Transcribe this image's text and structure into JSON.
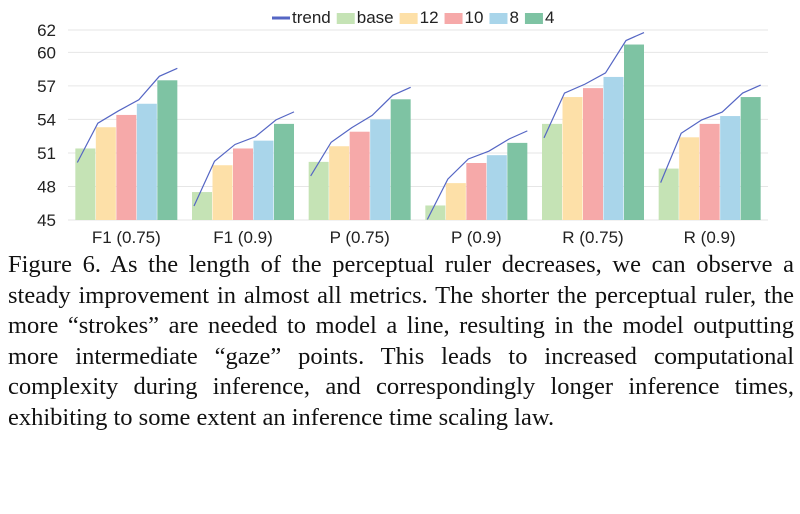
{
  "chart_data": {
    "type": "bar",
    "categories": [
      "F1 (0.75)",
      "F1 (0.9)",
      "P (0.75)",
      "P (0.9)",
      "R (0.75)",
      "R (0.9)"
    ],
    "series": [
      {
        "name": "base",
        "color": "#c5e3b5",
        "values": [
          51.4,
          47.5,
          50.2,
          46.3,
          53.6,
          49.6
        ]
      },
      {
        "name": "12",
        "color": "#fde0a8",
        "values": [
          53.3,
          49.9,
          51.6,
          48.3,
          56.0,
          52.4
        ]
      },
      {
        "name": "10",
        "color": "#f6a9a9",
        "values": [
          54.4,
          51.4,
          52.9,
          50.1,
          56.8,
          53.6
        ]
      },
      {
        "name": "8",
        "color": "#a9d5ea",
        "values": [
          55.4,
          52.1,
          54.0,
          50.8,
          57.8,
          54.3
        ]
      },
      {
        "name": "4",
        "color": "#7ec3a3",
        "values": [
          57.5,
          53.6,
          55.8,
          51.9,
          60.7,
          56.0
        ]
      }
    ],
    "trend": {
      "name": "trend",
      "color": "#5566c4"
    },
    "yticks": [
      45,
      48,
      51,
      54,
      57,
      60,
      62
    ],
    "ylim": [
      45,
      62
    ],
    "grid": true,
    "legend_position": "top"
  },
  "caption": "Figure 6. As the length of the perceptual ruler decreases, we can observe a steady improvement in almost all metrics. The shorter the perceptual ruler, the more “strokes” are needed to model a line, resulting in the model outputting more intermediate “gaze” points. This leads to increased computational complexity during inference, and correspondingly longer inference times, exhibiting to some extent an inference time scaling law."
}
